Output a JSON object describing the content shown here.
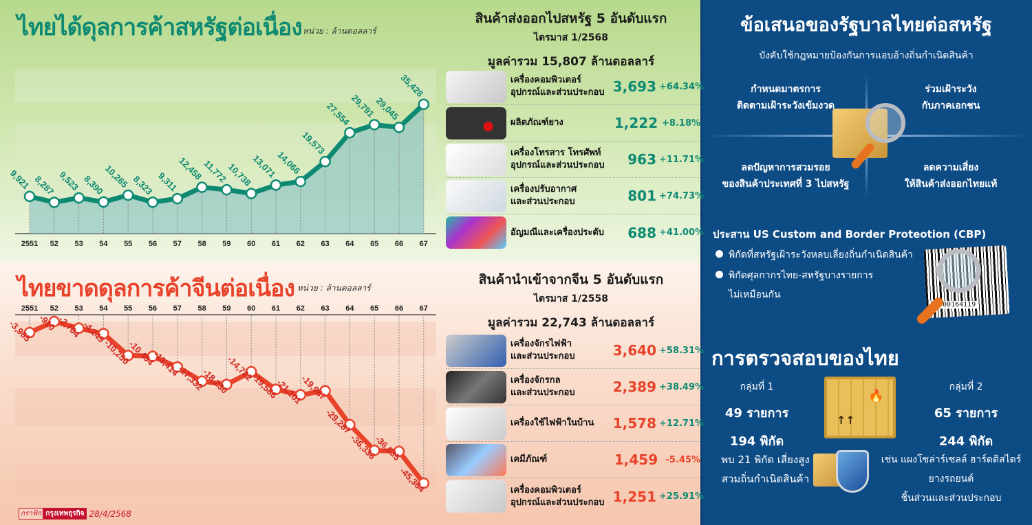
{
  "us_chart": {
    "title": "ไทยได้ดุลการค้าสหรัฐต่อเนื่อง",
    "unit": "หน่วย : ล้านดอลลาร์"
  },
  "cn_chart": {
    "title": "ไทยขาดดุลการค้าจีนต่อเนื่อง",
    "unit": "หน่วย : ล้านดอลลาร์"
  },
  "chart_data": [
    {
      "type": "line",
      "title": "ไทยได้ดุลการค้าสหรัฐต่อเนื่อง",
      "subtitle": "หน่วย : ล้านดอลลาร์",
      "xlabel": "",
      "ylabel": "ล้านดอลลาร์",
      "categories": [
        "2551",
        "52",
        "53",
        "54",
        "55",
        "56",
        "57",
        "58",
        "59",
        "60",
        "61",
        "62",
        "63",
        "64",
        "65",
        "66",
        "67"
      ],
      "values": [
        9921,
        8287,
        9523,
        8390,
        10265,
        8323,
        9311,
        12458,
        11772,
        10738,
        13071,
        14066,
        19573,
        27554,
        29791,
        29045,
        35428
      ],
      "labels": [
        "9,921",
        "8,287",
        "9,523",
        "8,390",
        "10,265",
        "8,323",
        "9,311",
        "12,458",
        "11,772",
        "10,738",
        "13,071",
        "14,066",
        "19,573",
        "27,554",
        "29,791",
        "29,045",
        "35,428"
      ],
      "color": "#0f8a72",
      "ylim": [
        0,
        40000
      ],
      "grid": false
    },
    {
      "type": "line",
      "title": "ไทยขาดดุลการค้าจีนต่อเนื่อง",
      "subtitle": "หน่วย : ล้านดอลลาร์",
      "xlabel": "",
      "ylabel": "ล้านดอลลาร์",
      "categories": [
        "2551",
        "52",
        "53",
        "54",
        "55",
        "56",
        "57",
        "58",
        "59",
        "60",
        "61",
        "62",
        "63",
        "64",
        "65",
        "66",
        "67"
      ],
      "values": [
        -3965,
        -910,
        -2764,
        -4249,
        -10250,
        -10494,
        -13414,
        -17332,
        -18230,
        -14722,
        -19586,
        -21101,
        -19987,
        -29287,
        -36336,
        -36635,
        -45364
      ],
      "labels": [
        "-3,965",
        "-910",
        "-2,764",
        "-4,249",
        "-10,250",
        "-10,494",
        "-13,414",
        "-17,332",
        "-18,230",
        "-14,722",
        "-19,586",
        "-21,101",
        "-19,987",
        "-29,287",
        "-36,336",
        "-36,635",
        "-45,364"
      ],
      "color": "#e8432a",
      "ylim": [
        -48000,
        0
      ],
      "grid": false
    }
  ],
  "us_exports": {
    "title": "สินค้าส่งออกไปสหรัฐ 5 อันดับแรก",
    "period": "ไตรมาส 1/2568",
    "total": "มูลค่ารวม 15,807 ล้านดอลลาร์",
    "items": [
      {
        "name1": "เครื่องคอมพิวเตอร์",
        "name2": "อุปกรณ์และส่วนประกอบ",
        "value": "3,693",
        "pct": "+64.34%",
        "thumb": "computer"
      },
      {
        "name1": "ผลิตภัณฑ์ยาง",
        "name2": "",
        "value": "1,222",
        "pct": "+8.18%",
        "thumb": "rubber"
      },
      {
        "name1": "เครื่องโทรสาร โทรศัพท์",
        "name2": "อุปกรณ์และส่วนประกอบ",
        "value": "963",
        "pct": "+11.71%",
        "thumb": "fax"
      },
      {
        "name1": "เครื่องปรับอากาศ",
        "name2": "และส่วนประกอบ",
        "value": "801",
        "pct": "+74.73%",
        "thumb": "air-conditioner"
      },
      {
        "name1": "อัญมณีและเครื่องประดับ",
        "name2": "",
        "value": "688",
        "pct": "+41.00%",
        "thumb": "gems"
      }
    ]
  },
  "cn_imports": {
    "title": "สินค้านำเข้าจากจีน 5 อันดับแรก",
    "period": "ไตรมาส 1/2558",
    "total": "มูลค่ารวม 22,743 ล้านดอลลาร์",
    "items": [
      {
        "name1": "เครื่องจักรไฟฟ้า",
        "name2": "และส่วนประกอบ",
        "value": "3,640",
        "pct": "+58.31%",
        "thumb": "electric-motor"
      },
      {
        "name1": "เครื่องจักรกล",
        "name2": "และส่วนประกอบ",
        "value": "2,389",
        "pct": "+38.49%",
        "thumb": "machinery"
      },
      {
        "name1": "เครื่องใช้ไฟฟ้าในบ้าน",
        "name2": "",
        "value": "1,578",
        "pct": "+12.71%",
        "thumb": "home-appliances"
      },
      {
        "name1": "เคมีภัณฑ์",
        "name2": "",
        "value": "1,459",
        "pct": "-5.45%",
        "thumb": "chemicals"
      },
      {
        "name1": "เครื่องคอมพิวเตอร์",
        "name2": "อุปกรณ์และส่วนประกอบ",
        "value": "1,251",
        "pct": "+25.91%",
        "thumb": "computer"
      }
    ]
  },
  "proposal": {
    "title": "ข้อเสนอของรัฐบาลไทยต่อสหรัฐ",
    "subtitle": "บังคับใช้กฎหมายป้องกันการแอบอ้างถิ่นกำเนิดสินค้า",
    "q1_l1": "กำหนดมาตรการ",
    "q1_l2": "ติดตามเฝ้าระวังเข้มงวด",
    "q2_l1": "ร่วมเฝ้าระวัง",
    "q2_l2": "กับภาคเอกชน",
    "q3_l1": "ลดปัญหาการสวมรอย",
    "q3_l2": "ของสินค้าประเทศที่ 3 ไปสหรัฐ",
    "q4_l1": "ลดความเสี่ยง",
    "q4_l2": "ให้สินค้าส่งออกไทยแท้"
  },
  "cbp": {
    "title": "ประสาน US Custom and Border Proteotion (CBP)",
    "bullet1": "พิกัดที่สหรัฐเฝ้าระวังหลบเลี่ยงถิ่นกำเนิดสินค้า",
    "bullet2": "พิกัดศุลกากรไทย-สหรัฐบางรายการ",
    "bullet2_cont": "ไม่เหมือนกัน",
    "barcode": "53700164119"
  },
  "inspection": {
    "title": "การตรวจสอบของไทย",
    "group1": {
      "label": "กลุ่มที่ 1",
      "items": "49 รายการ",
      "codes": "194 พิกัด"
    },
    "group2": {
      "label": "กลุ่มที่ 2",
      "items": "65 รายการ",
      "codes": "244 พิกัด"
    },
    "risk_l1": "พบ 21 พิกัด เสี่ยงสูง",
    "risk_l2": "สวมถิ่นกำเนิดสินค้า",
    "ex_l1": "เช่น แผงโซล่าร์เซลล์ ฮาร์ดดิสไดร์",
    "ex_l2": "ยางรถยนต์",
    "ex_l3": "ชิ้นส่วนและส่วนประกอบ"
  },
  "credit": {
    "label": "กราฟิก",
    "source": "กรุงเทพธุรกิจ",
    "date": "28/4/2568"
  }
}
